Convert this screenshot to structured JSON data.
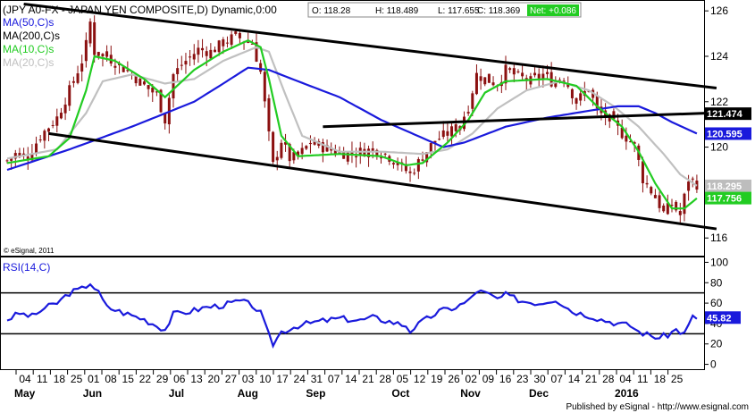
{
  "header": {
    "title": "(JPY A0-FX - JAPAN YEN COMPOSITE,D) Dynamic,0:00",
    "ohlc": [
      {
        "label": "O:",
        "value": "118.28"
      },
      {
        "label": "H:",
        "value": "118.489"
      },
      {
        "label": "L:",
        "value": "117.655"
      },
      {
        "label": "C:",
        "value": "118.369"
      }
    ],
    "net": "Net: +0.086"
  },
  "legend": [
    {
      "text": "MA(50,C)s",
      "color": "#1a1adc"
    },
    {
      "text": "MA(200,C)s",
      "color": "#000000"
    },
    {
      "text": "MA(10,C)s",
      "color": "#22cc22"
    },
    {
      "text": "MA(20,C)s",
      "color": "#c0c0c0"
    }
  ],
  "copyright": "© eSignal, 2011",
  "footer": "Published by eSignal - http://www.esignal.com",
  "colors": {
    "candle": "#8b1010",
    "ma10": "#22cc22",
    "ma20": "#c0c0c0",
    "ma50": "#1a1adc",
    "trendline": "#000000",
    "rsi": "#1a1adc",
    "badge_black": "#000000",
    "badge_green": "#22cc22",
    "badge_blue": "#1a1adc",
    "badge_grey": "#bdbdbd"
  },
  "chart_data": [
    {
      "type": "candlestick",
      "title": "JPY A0-FX - JAPAN YEN COMPOSITE, Daily",
      "ylim": [
        115.3,
        126.4
      ],
      "y_ticks": [
        "126",
        "124",
        "122",
        "120",
        "118",
        "116"
      ],
      "x_day_ticks": [
        "04",
        "11",
        "18",
        "25",
        "01",
        "08",
        "15",
        "22",
        "29",
        "06",
        "13",
        "20",
        "27",
        "03",
        "10",
        "17",
        "24",
        "31",
        "07",
        "14",
        "21",
        "28",
        "05",
        "12",
        "19",
        "26",
        "02",
        "09",
        "16",
        "23",
        "30",
        "07",
        "14",
        "21",
        "28",
        "04",
        "11",
        "18",
        "25"
      ],
      "x_month_labels": [
        {
          "label": "May",
          "tick": 0
        },
        {
          "label": "Jun",
          "tick": 4
        },
        {
          "label": "Jul",
          "tick": 9
        },
        {
          "label": "Aug",
          "tick": 13
        },
        {
          "label": "Sep",
          "tick": 17
        },
        {
          "label": "Oct",
          "tick": 22
        },
        {
          "label": "Nov",
          "tick": 26
        },
        {
          "label": "Dec",
          "tick": 30
        },
        {
          "label": "2016",
          "tick": 35
        }
      ],
      "close_key": [
        [
          0,
          119.4
        ],
        [
          2,
          119.7
        ],
        [
          5,
          119.6
        ],
        [
          8,
          120.5
        ],
        [
          12,
          121.3
        ],
        [
          15,
          122.5
        ],
        [
          18,
          123.8
        ],
        [
          19,
          124.5
        ],
        [
          20,
          125.5
        ],
        [
          21,
          124.2
        ],
        [
          24,
          124.0
        ],
        [
          27,
          123.6
        ],
        [
          30,
          123.2
        ],
        [
          33,
          122.7
        ],
        [
          36,
          122.3
        ],
        [
          38,
          121.2
        ],
        [
          40,
          123.2
        ],
        [
          43,
          123.8
        ],
        [
          46,
          124.3
        ],
        [
          49,
          124.2
        ],
        [
          52,
          124.6
        ],
        [
          55,
          124.9
        ],
        [
          57,
          124.7
        ],
        [
          59,
          124.6
        ],
        [
          61,
          123.3
        ],
        [
          63,
          120.5
        ],
        [
          64,
          119.2
        ],
        [
          66,
          120.3
        ],
        [
          68,
          119.5
        ],
        [
          70,
          119.6
        ],
        [
          73,
          120.2
        ],
        [
          76,
          120.0
        ],
        [
          79,
          119.8
        ],
        [
          82,
          119.7
        ],
        [
          85,
          119.8
        ],
        [
          88,
          119.9
        ],
        [
          91,
          119.7
        ],
        [
          94,
          119.3
        ],
        [
          97,
          118.8
        ],
        [
          100,
          119.6
        ],
        [
          103,
          120.3
        ],
        [
          106,
          120.6
        ],
        [
          109,
          121.0
        ],
        [
          111,
          121.8
        ],
        [
          113,
          123.2
        ],
        [
          115,
          123.0
        ],
        [
          118,
          122.8
        ],
        [
          120,
          123.4
        ],
        [
          123,
          123.1
        ],
        [
          126,
          122.9
        ],
        [
          129,
          123.2
        ],
        [
          131,
          122.9
        ],
        [
          134,
          123.1
        ],
        [
          137,
          122.0
        ],
        [
          140,
          122.6
        ],
        [
          142,
          121.6
        ],
        [
          145,
          121.2
        ],
        [
          148,
          120.6
        ],
        [
          151,
          120.1
        ],
        [
          153,
          118.6
        ],
        [
          156,
          117.8
        ],
        [
          158,
          117.1
        ],
        [
          160,
          117.5
        ],
        [
          162,
          117.0
        ],
        [
          164,
          118.6
        ],
        [
          166,
          118.37
        ]
      ],
      "candles": {
        "count": 167
      },
      "moving_averages": [
        {
          "name": "MA(50,C)s",
          "last": 120.595,
          "key": [
            [
              0,
              119.0
            ],
            [
              15,
              119.9
            ],
            [
              30,
              120.9
            ],
            [
              45,
              122.0
            ],
            [
              52,
              122.8
            ],
            [
              58,
              123.5
            ],
            [
              63,
              123.4
            ],
            [
              70,
              122.9
            ],
            [
              80,
              122.2
            ],
            [
              90,
              121.2
            ],
            [
              100,
              120.4
            ],
            [
              105,
              120.0
            ],
            [
              110,
              120.2
            ],
            [
              120,
              120.9
            ],
            [
              130,
              121.3
            ],
            [
              140,
              121.6
            ],
            [
              147,
              121.8
            ],
            [
              152,
              121.8
            ],
            [
              156,
              121.5
            ],
            [
              160,
              121.1
            ],
            [
              166,
              120.6
            ]
          ]
        },
        {
          "name": "MA(10,C)s",
          "last": 117.756,
          "key": [
            [
              0,
              119.3
            ],
            [
              10,
              119.6
            ],
            [
              15,
              120.4
            ],
            [
              19,
              122.5
            ],
            [
              21,
              124.0
            ],
            [
              26,
              123.8
            ],
            [
              33,
              123.0
            ],
            [
              38,
              122.2
            ],
            [
              45,
              123.4
            ],
            [
              52,
              124.2
            ],
            [
              58,
              124.7
            ],
            [
              61,
              124.4
            ],
            [
              63,
              123.0
            ],
            [
              66,
              120.5
            ],
            [
              70,
              119.6
            ],
            [
              80,
              119.7
            ],
            [
              90,
              119.6
            ],
            [
              96,
              119.2
            ],
            [
              100,
              119.3
            ],
            [
              106,
              120.2
            ],
            [
              111,
              121.2
            ],
            [
              115,
              122.4
            ],
            [
              120,
              122.9
            ],
            [
              130,
              123.0
            ],
            [
              137,
              122.7
            ],
            [
              142,
              121.8
            ],
            [
              148,
              120.9
            ],
            [
              152,
              119.8
            ],
            [
              156,
              118.4
            ],
            [
              160,
              117.3
            ],
            [
              163,
              117.3
            ],
            [
              166,
              117.75
            ]
          ]
        },
        {
          "name": "MA(20,C)s",
          "last": 118.295,
          "key": [
            [
              0,
              119.5
            ],
            [
              12,
              119.9
            ],
            [
              19,
              121.5
            ],
            [
              23,
              122.9
            ],
            [
              30,
              123.2
            ],
            [
              38,
              122.8
            ],
            [
              45,
              123.0
            ],
            [
              52,
              123.8
            ],
            [
              60,
              124.4
            ],
            [
              63,
              124.2
            ],
            [
              67,
              122.3
            ],
            [
              71,
              120.5
            ],
            [
              80,
              119.8
            ],
            [
              90,
              119.8
            ],
            [
              100,
              119.7
            ],
            [
              106,
              119.9
            ],
            [
              112,
              120.6
            ],
            [
              118,
              121.7
            ],
            [
              125,
              122.5
            ],
            [
              133,
              122.9
            ],
            [
              140,
              122.5
            ],
            [
              146,
              121.8
            ],
            [
              152,
              120.9
            ],
            [
              158,
              119.7
            ],
            [
              162,
              118.8
            ],
            [
              166,
              118.3
            ]
          ]
        }
      ],
      "trendlines": [
        {
          "name": "upper channel",
          "from": [
            4,
            126.3
          ],
          "to": [
            166,
            122.6
          ]
        },
        {
          "name": "lower channel",
          "from": [
            10,
            120.6
          ],
          "to": [
            166,
            116.4
          ]
        },
        {
          "name": "horizontal resistance",
          "from": [
            76,
            120.9
          ],
          "to": [
            164,
            121.5
          ]
        }
      ],
      "badges": [
        {
          "value": "121.474",
          "y": 121.474,
          "style": "black"
        },
        {
          "value": "120.595",
          "y": 120.595,
          "style": "blue"
        },
        {
          "value": "118.295",
          "y": 118.295,
          "style": "grey"
        },
        {
          "value": "117.756",
          "y": 117.756,
          "style": "green"
        }
      ]
    },
    {
      "type": "line",
      "title": "RSI(14,C)",
      "ylim": [
        -3,
        103
      ],
      "y_ticks": [
        "100",
        "80",
        "60",
        "40",
        "20",
        "0"
      ],
      "levels": [
        70,
        30
      ],
      "last": "45.82",
      "key": [
        [
          0,
          44
        ],
        [
          3,
          50
        ],
        [
          6,
          47
        ],
        [
          9,
          55
        ],
        [
          12,
          60
        ],
        [
          15,
          70
        ],
        [
          18,
          74
        ],
        [
          20,
          80
        ],
        [
          22,
          70
        ],
        [
          24,
          56
        ],
        [
          27,
          52
        ],
        [
          30,
          48
        ],
        [
          33,
          44
        ],
        [
          36,
          38
        ],
        [
          38,
          34
        ],
        [
          40,
          49
        ],
        [
          44,
          52
        ],
        [
          48,
          56
        ],
        [
          52,
          58
        ],
        [
          56,
          62
        ],
        [
          59,
          58
        ],
        [
          61,
          50
        ],
        [
          63,
          28
        ],
        [
          64,
          20
        ],
        [
          66,
          32
        ],
        [
          70,
          38
        ],
        [
          75,
          42
        ],
        [
          80,
          45
        ],
        [
          85,
          43
        ],
        [
          88,
          46
        ],
        [
          92,
          42
        ],
        [
          96,
          38
        ],
        [
          97,
          33
        ],
        [
          100,
          42
        ],
        [
          104,
          52
        ],
        [
          108,
          56
        ],
        [
          111,
          62
        ],
        [
          113,
          72
        ],
        [
          115,
          70
        ],
        [
          118,
          64
        ],
        [
          120,
          68
        ],
        [
          124,
          62
        ],
        [
          128,
          60
        ],
        [
          132,
          64
        ],
        [
          136,
          52
        ],
        [
          140,
          48
        ],
        [
          143,
          44
        ],
        [
          147,
          40
        ],
        [
          150,
          38
        ],
        [
          152,
          32
        ],
        [
          155,
          28
        ],
        [
          157,
          26
        ],
        [
          159,
          29
        ],
        [
          161,
          34
        ],
        [
          163,
          30
        ],
        [
          165,
          46
        ],
        [
          166,
          45.82
        ]
      ]
    }
  ]
}
